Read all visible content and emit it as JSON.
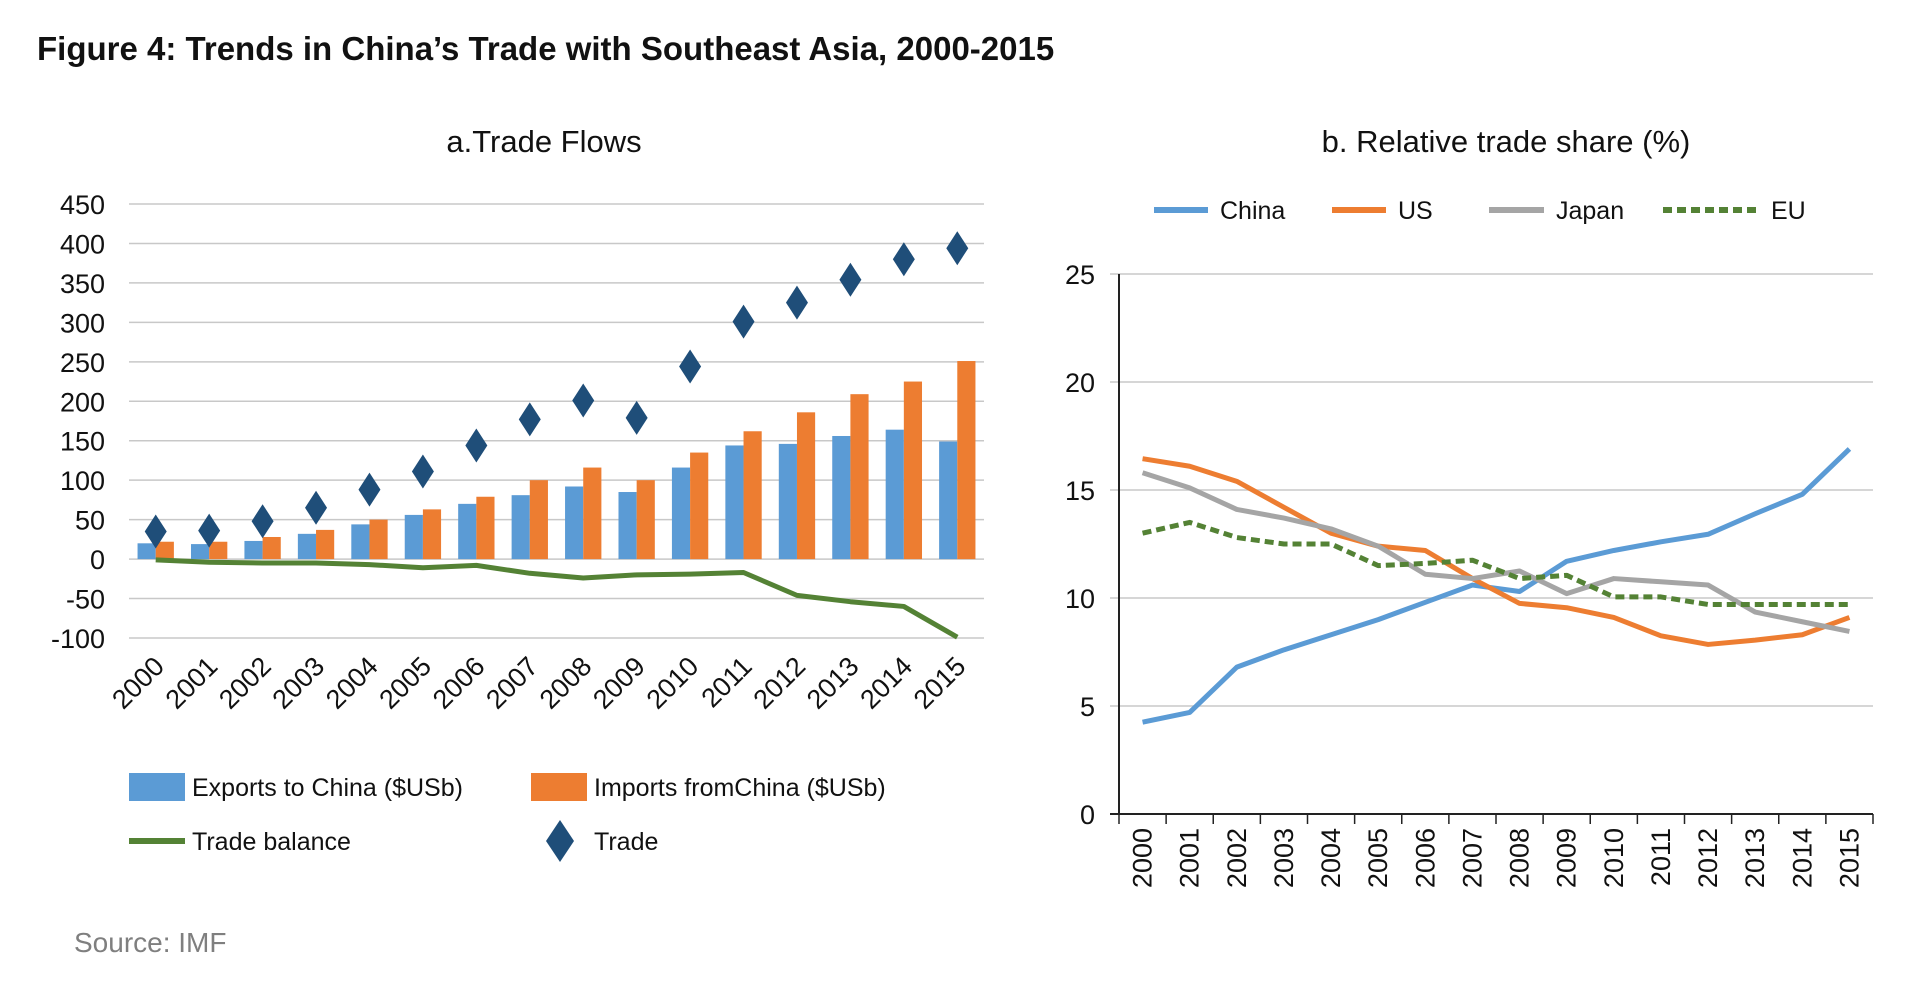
{
  "figure_title": "Figure 4: Trends in China’s Trade with Southeast Asia, 2000-2015",
  "source": "Source: IMF",
  "colors": {
    "exports": "#5b9bd5",
    "imports": "#ed7d31",
    "balance": "#548235",
    "trade": "#1f4e79",
    "china": "#5b9bd5",
    "us": "#ed7d31",
    "japan": "#a5a5a5",
    "eu": "#548235"
  },
  "chart_data": [
    {
      "type": "bar",
      "title": "a.Trade Flows",
      "categories": [
        "2000",
        "2001",
        "2002",
        "2003",
        "2004",
        "2005",
        "2006",
        "2007",
        "2008",
        "2009",
        "2010",
        "2011",
        "2012",
        "2013",
        "2014",
        "2015"
      ],
      "ylim": [
        -100,
        450
      ],
      "yticks": [
        450,
        400,
        350,
        300,
        250,
        200,
        150,
        100,
        50,
        0,
        -50,
        -100
      ],
      "grid": true,
      "legend_position": "bottom",
      "series": [
        {
          "name": "Exports to China ($USb)",
          "kind": "bar",
          "values": [
            20,
            19,
            23,
            32,
            44,
            56,
            70,
            81,
            92,
            85,
            116,
            144,
            146,
            156,
            164,
            149
          ]
        },
        {
          "name": "Imports fromChina ($USb)",
          "kind": "bar",
          "values": [
            22,
            22,
            28,
            37,
            50,
            63,
            79,
            100,
            116,
            100,
            135,
            162,
            186,
            209,
            225,
            251
          ]
        },
        {
          "name": "Trade balance",
          "kind": "line",
          "values": [
            -1,
            -4,
            -5,
            -5,
            -7,
            -11,
            -8,
            -18,
            -24,
            -20,
            -19,
            -17,
            -46,
            -54,
            -60,
            -99
          ]
        },
        {
          "name": "Trade",
          "kind": "marker",
          "values": [
            35,
            36,
            48,
            65,
            88,
            111,
            144,
            177,
            201,
            179,
            244,
            301,
            325,
            354,
            380,
            394
          ]
        }
      ]
    },
    {
      "type": "line",
      "title": "b. Relative trade share (%)",
      "categories": [
        "2000",
        "2001",
        "2002",
        "2003",
        "2004",
        "2005",
        "2006",
        "2007",
        "2008",
        "2009",
        "2010",
        "2011",
        "2012",
        "2013",
        "2014",
        "2015"
      ],
      "ylim": [
        0,
        25
      ],
      "yticks": [
        25,
        20,
        15,
        10,
        5,
        0
      ],
      "grid": true,
      "legend_position": "top",
      "series": [
        {
          "name": "China",
          "values": [
            4.25,
            4.7,
            6.8,
            7.6,
            8.3,
            9.0,
            9.8,
            10.6,
            10.3,
            11.7,
            12.2,
            12.6,
            12.95,
            13.9,
            14.8,
            16.9
          ]
        },
        {
          "name": "US",
          "values": [
            16.45,
            16.1,
            15.4,
            14.2,
            13.0,
            12.4,
            12.2,
            10.9,
            9.75,
            9.55,
            9.1,
            8.25,
            7.85,
            8.05,
            8.3,
            9.1
          ]
        },
        {
          "name": "Japan",
          "values": [
            15.8,
            15.1,
            14.1,
            13.7,
            13.2,
            12.4,
            11.1,
            10.9,
            11.25,
            10.2,
            10.9,
            10.75,
            10.6,
            9.35,
            8.9,
            8.45
          ]
        },
        {
          "name": "EU",
          "values": [
            13.0,
            13.5,
            12.8,
            12.5,
            12.5,
            11.5,
            11.6,
            11.75,
            10.9,
            11.05,
            10.05,
            10.05,
            9.7,
            9.7,
            9.7,
            9.7
          ]
        }
      ]
    }
  ]
}
